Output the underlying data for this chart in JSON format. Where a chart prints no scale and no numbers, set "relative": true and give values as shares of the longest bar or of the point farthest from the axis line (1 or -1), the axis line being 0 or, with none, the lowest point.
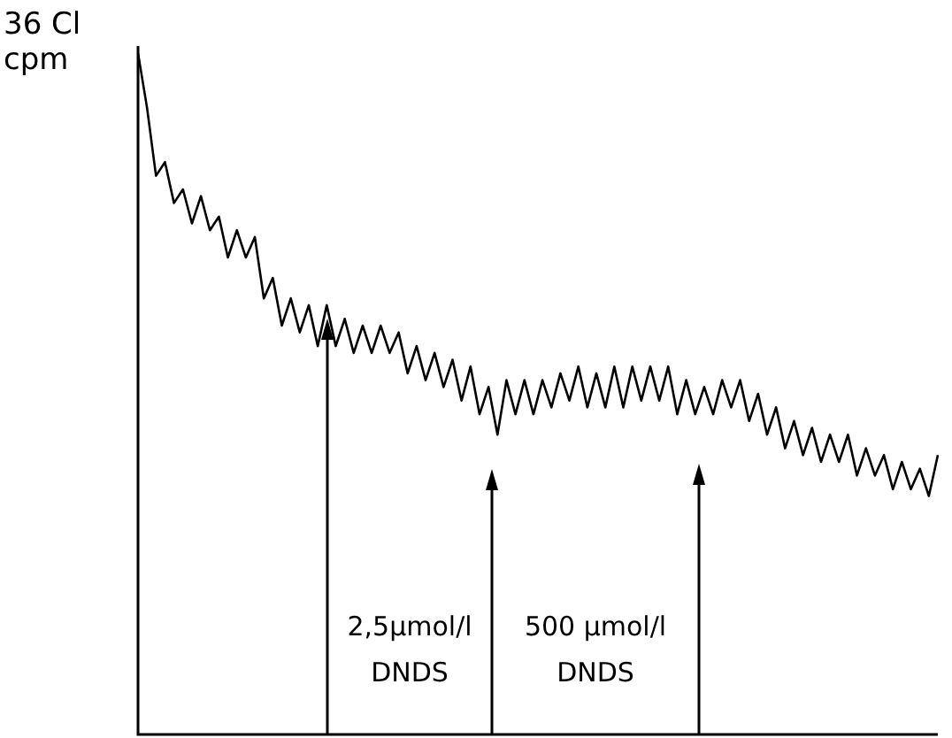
{
  "chart_data": {
    "type": "line",
    "relative": true,
    "ylabel": "36 Cl cpm",
    "color": "#000000",
    "marker": "none",
    "categories": [
      null,
      null,
      null,
      null,
      null,
      null,
      null,
      null,
      null,
      null,
      null,
      null,
      null,
      null,
      null,
      null,
      null,
      null,
      null,
      null,
      null,
      null,
      null,
      null,
      null,
      null,
      null,
      null,
      null,
      null,
      null,
      null,
      null,
      null,
      null,
      null,
      null,
      null,
      null,
      null,
      null,
      null,
      null,
      null,
      null,
      null,
      null,
      null,
      null,
      null,
      null,
      null,
      null,
      null,
      null,
      null,
      null,
      null,
      null,
      null,
      null,
      null,
      null,
      null,
      null,
      null,
      null,
      null,
      null,
      null,
      null,
      null,
      null,
      null,
      null,
      null,
      null,
      null,
      null,
      null,
      null,
      null,
      null,
      null,
      null,
      null,
      null,
      null,
      null,
      null
    ],
    "values": [
      1.0,
      0.92,
      0.82,
      0.84,
      0.78,
      0.8,
      0.75,
      0.79,
      0.74,
      0.76,
      0.7,
      0.74,
      0.7,
      0.73,
      0.64,
      0.67,
      0.6,
      0.64,
      0.59,
      0.63,
      0.57,
      0.63,
      0.57,
      0.61,
      0.56,
      0.6,
      0.56,
      0.6,
      0.56,
      0.59,
      0.53,
      0.57,
      0.52,
      0.56,
      0.51,
      0.55,
      0.49,
      0.54,
      0.47,
      0.51,
      0.44,
      0.52,
      0.47,
      0.52,
      0.47,
      0.52,
      0.48,
      0.53,
      0.49,
      0.54,
      0.48,
      0.53,
      0.48,
      0.54,
      0.48,
      0.54,
      0.49,
      0.54,
      0.49,
      0.54,
      0.47,
      0.52,
      0.47,
      0.51,
      0.47,
      0.52,
      0.48,
      0.52,
      0.46,
      0.5,
      0.44,
      0.48,
      0.42,
      0.46,
      0.41,
      0.45,
      0.4,
      0.44,
      0.4,
      0.44,
      0.38,
      0.42,
      0.38,
      0.41,
      0.36,
      0.4,
      0.36,
      0.39,
      0.35,
      0.41
    ],
    "annotations": [
      "2,5µmol/l DNDS",
      "500 µmol/l DNDS"
    ],
    "legend": false
  }
}
